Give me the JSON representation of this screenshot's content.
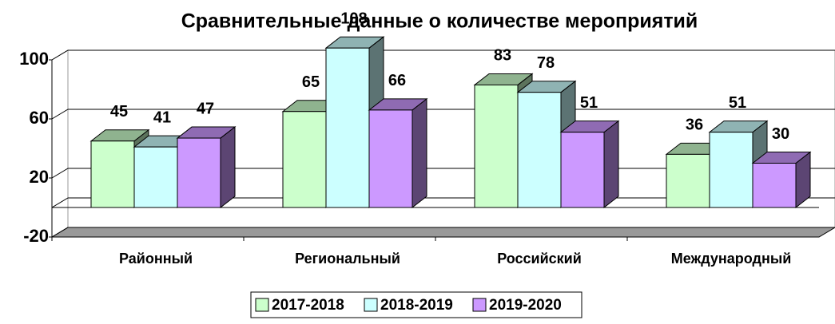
{
  "chart_data": {
    "type": "bar",
    "title": "Сравнительные данные о количестве мероприятий",
    "categories": [
      "Районный",
      "Региональный",
      "Российский",
      "Международный"
    ],
    "series": [
      {
        "name": "2017-2018",
        "color": "#ccffcc",
        "values": [
          45,
          65,
          83,
          36
        ]
      },
      {
        "name": "2018-2019",
        "color": "#ccffff",
        "values": [
          41,
          108,
          78,
          51
        ]
      },
      {
        "name": "2019-2020",
        "color": "#cc99ff",
        "values": [
          47,
          66,
          51,
          30
        ]
      }
    ],
    "ylim": [
      -20,
      100
    ],
    "yticks": [
      -20,
      20,
      60,
      100
    ],
    "grid": true,
    "legend": "bottom"
  }
}
